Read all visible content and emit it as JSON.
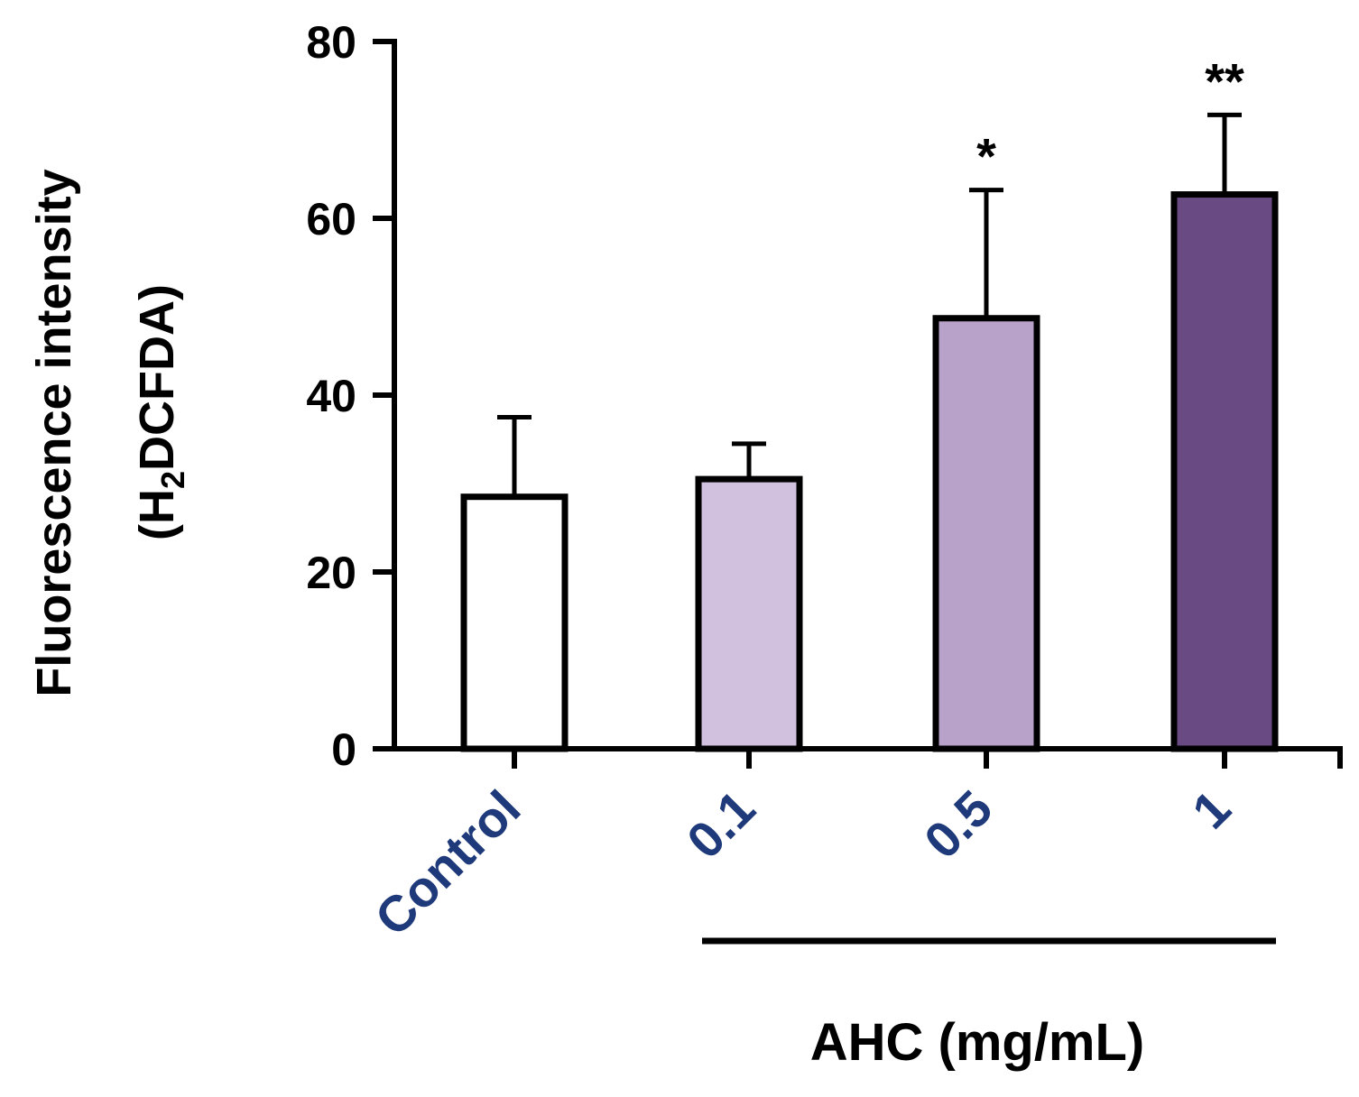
{
  "chart_data": {
    "type": "bar",
    "title": "",
    "xlabel": "",
    "ylabel": "Fluorescence intensity",
    "ylabel_line2": {
      "prefix": "(H",
      "subscript": "2",
      "suffix": "DCFDA)"
    },
    "ylim": [
      0,
      80
    ],
    "yticks": [
      "0",
      "20",
      "40",
      "60",
      "80"
    ],
    "categories": [
      "Control",
      "0.1",
      "0.5",
      "1"
    ],
    "values": [
      28.5,
      30.5,
      48.7,
      62.7
    ],
    "errors": [
      9.0,
      4.0,
      14.5,
      9.0
    ],
    "significance": [
      "",
      "",
      "*",
      "**"
    ],
    "bar_colors": [
      "#ffffff",
      "#d1c1de",
      "#b9a2c9",
      "#6a4a82"
    ],
    "label_color": "#1f3a7a",
    "group_bracket": {
      "label": "AHC (mg/mL)",
      "from_category": 1,
      "to_category": 3
    }
  }
}
